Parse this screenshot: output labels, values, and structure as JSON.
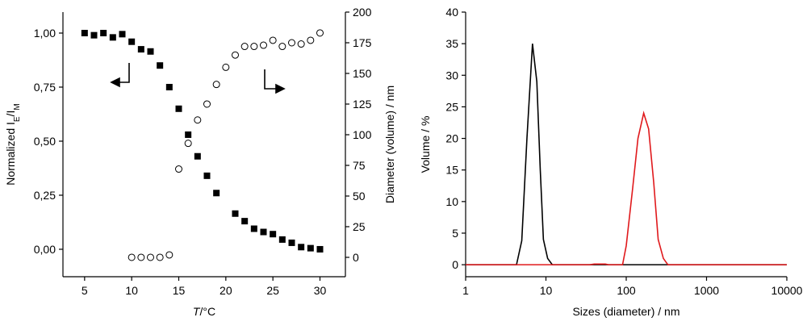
{
  "chart_data": [
    {
      "type": "scatter",
      "x_label": [
        "T",
        "/°C"
      ],
      "y_label": [
        "Normalized I",
        "E",
        "/I",
        "M"
      ],
      "y2_label": "Diameter (volume) / nm",
      "xlim": [
        2.7,
        32.7
      ],
      "xticks": [
        5,
        10,
        15,
        20,
        25,
        30
      ],
      "ylim": [
        -0.127,
        1.097
      ],
      "yticks": [
        {
          "value": 0,
          "label": "0,00"
        },
        {
          "value": 0.25,
          "label": "0,25"
        },
        {
          "value": 0.5,
          "label": "0,50"
        },
        {
          "value": 0.75,
          "label": "0,75"
        },
        {
          "value": 1,
          "label": "1,00"
        }
      ],
      "y2lim": [
        -15.8,
        200
      ],
      "y2ticks": [
        0,
        25,
        50,
        75,
        100,
        125,
        150,
        175,
        200
      ],
      "series": [
        {
          "marker": "square",
          "color": "#000000",
          "x": [
            5,
            6,
            7,
            8,
            9,
            10,
            11,
            12,
            13,
            14,
            15,
            16,
            17,
            18,
            19,
            21,
            22,
            23,
            24,
            25,
            26,
            27,
            28,
            29,
            30
          ],
          "values": [
            1.0,
            0.99,
            1.0,
            0.98,
            0.995,
            0.96,
            0.925,
            0.915,
            0.85,
            0.75,
            0.65,
            0.53,
            0.43,
            0.34,
            0.26,
            0.165,
            0.13,
            0.095,
            0.08,
            0.07,
            0.045,
            0.03,
            0.01,
            0.005,
            0.0
          ]
        },
        {
          "marker": "circle-open",
          "color": "#000000",
          "axis": "y2",
          "x": [
            10,
            11,
            12,
            13,
            14,
            15,
            16,
            17,
            18,
            19,
            20,
            21,
            22,
            23,
            24,
            25,
            26,
            27,
            28,
            29,
            30
          ],
          "values": [
            0,
            0,
            0,
            0,
            2,
            72,
            93,
            112,
            125,
            141,
            155,
            165,
            172,
            172,
            173,
            177,
            172,
            175,
            174,
            177,
            183
          ]
        }
      ]
    },
    {
      "type": "line",
      "x_label": "Sizes (diameter) / nm",
      "y_label": "Volume / %",
      "xlog": true,
      "xlim": [
        1,
        10000
      ],
      "xticks": [
        1,
        10,
        100,
        1000,
        10000
      ],
      "ylim": [
        -1.9,
        40
      ],
      "yticks": [
        0,
        5,
        10,
        15,
        20,
        25,
        30,
        35,
        40
      ],
      "series": [
        {
          "color": "#000000",
          "x": [
            1,
            4.3,
            5,
            5.8,
            6.8,
            7.7,
            8.5,
            9.3,
            10.5,
            12,
            10000
          ],
          "values": [
            0,
            0,
            3.8,
            20,
            35,
            29,
            15,
            4,
            1,
            0,
            0
          ]
        },
        {
          "color": "#e0191c",
          "x": [
            1,
            35,
            40,
            55,
            60,
            90,
            100,
            120,
            140,
            165,
            190,
            220,
            250,
            290,
            330,
            10000
          ],
          "values": [
            0,
            0,
            0.1,
            0.1,
            0,
            0,
            3,
            12,
            20,
            24,
            21.5,
            13,
            4,
            1,
            0,
            0
          ]
        }
      ]
    }
  ]
}
